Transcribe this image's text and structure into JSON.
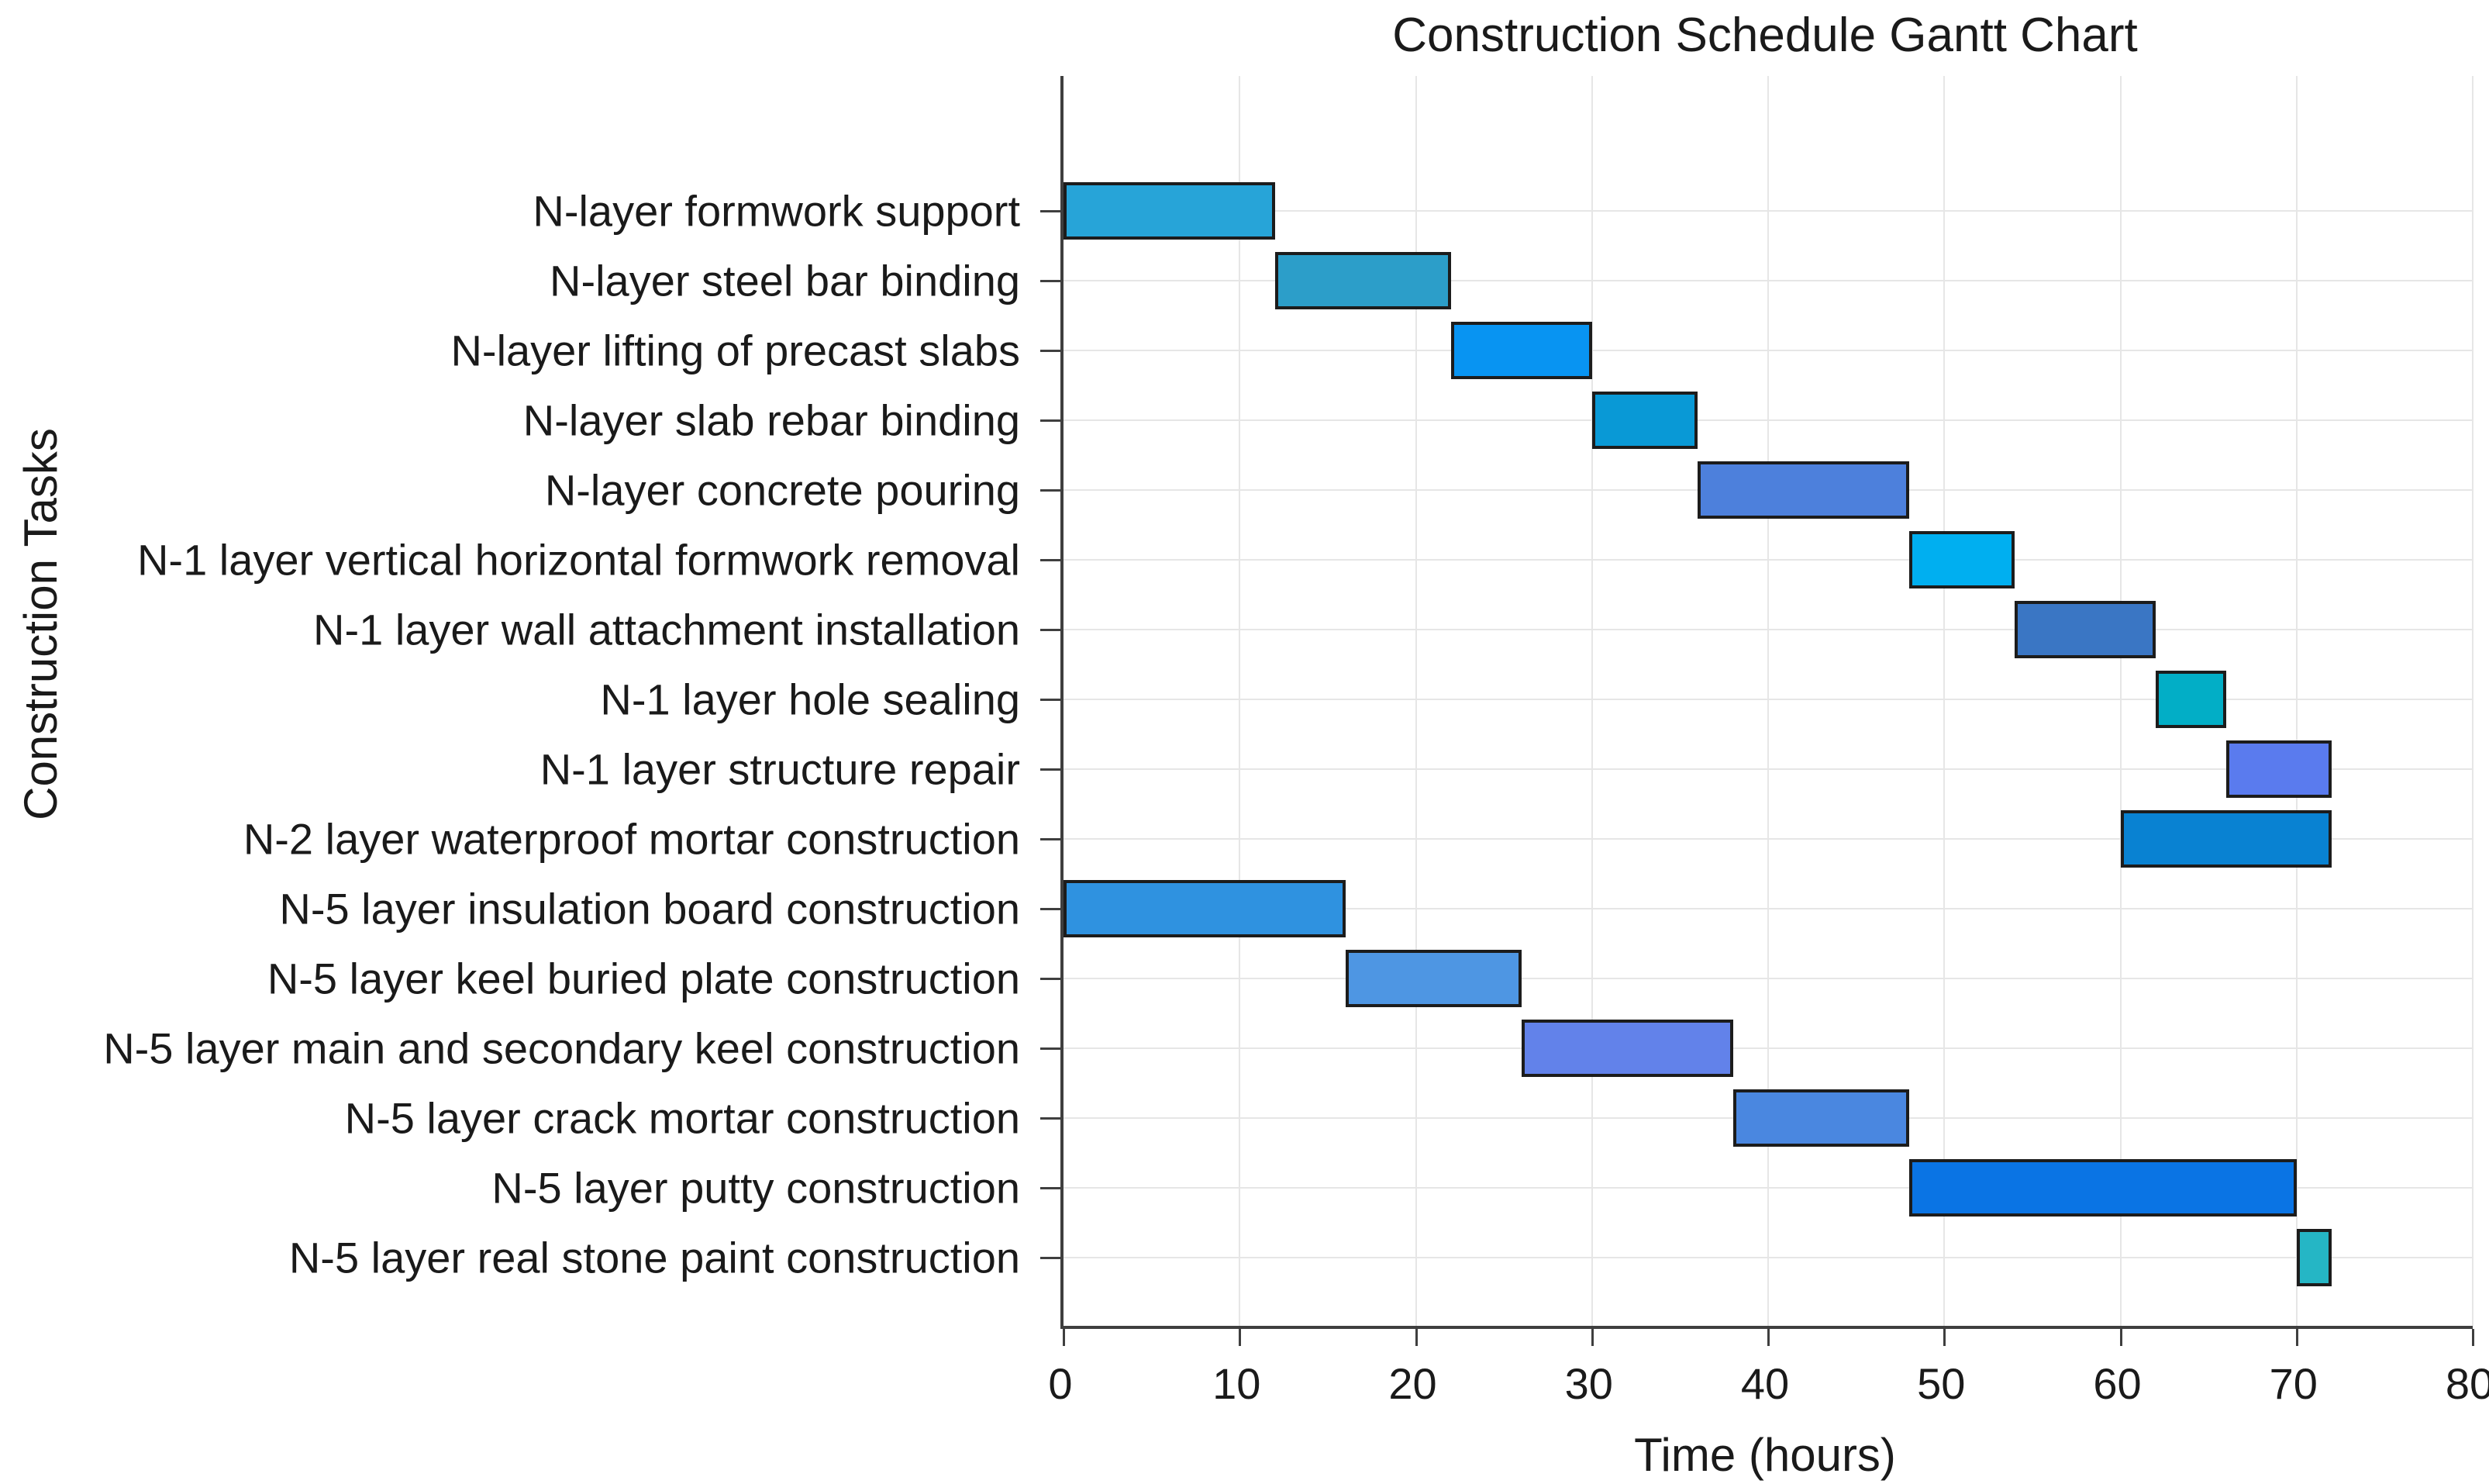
{
  "title": "Construction Schedule Gantt Chart",
  "x_axis_label": "Time (hours)",
  "y_axis_label": "Construction Tasks",
  "chart_data": {
    "type": "bar",
    "orientation": "horizontal-gantt",
    "title": "Construction Schedule Gantt Chart",
    "xlabel": "Time (hours)",
    "ylabel": "Construction Tasks",
    "xlim": [
      0,
      80
    ],
    "x_ticks": [
      0,
      10,
      20,
      30,
      40,
      50,
      60,
      70,
      80
    ],
    "grid": true,
    "legend": "none",
    "bar_border_color": "#1c1c1c",
    "tasks": [
      {
        "label": "N-layer formwork support",
        "start": 0,
        "end": 12,
        "color": "#27a4d8"
      },
      {
        "label": "N-layer steel bar binding",
        "start": 12,
        "end": 22,
        "color": "#2c9ec9"
      },
      {
        "label": "N-layer lifting of precast slabs",
        "start": 22,
        "end": 30,
        "color": "#0894f2"
      },
      {
        "label": "N-layer slab rebar binding",
        "start": 30,
        "end": 36,
        "color": "#0999d6"
      },
      {
        "label": "N-layer concrete pouring",
        "start": 36,
        "end": 48,
        "color": "#4d80dc"
      },
      {
        "label": "N-1 layer vertical horizontal formwork removal",
        "start": 48,
        "end": 54,
        "color": "#00aff0"
      },
      {
        "label": "N-1 layer wall attachment installation",
        "start": 54,
        "end": 62,
        "color": "#3a76c4"
      },
      {
        "label": "N-1 layer hole sealing",
        "start": 62,
        "end": 66,
        "color": "#02aec6"
      },
      {
        "label": "N-1 layer structure repair",
        "start": 66,
        "end": 72,
        "color": "#5a7bee"
      },
      {
        "label": "N-2 layer waterproof mortar construction",
        "start": 60,
        "end": 72,
        "color": "#0982d2"
      },
      {
        "label": "N-5 layer insulation board construction",
        "start": 0,
        "end": 16,
        "color": "#2f92e0"
      },
      {
        "label": "N-5 layer keel buried plate construction",
        "start": 16,
        "end": 26,
        "color": "#4e96e3"
      },
      {
        "label": "N-5 layer main and secondary keel construction",
        "start": 26,
        "end": 38,
        "color": "#6282ea"
      },
      {
        "label": "N-5 layer crack mortar construction",
        "start": 38,
        "end": 48,
        "color": "#4a87e0"
      },
      {
        "label": "N-5 layer putty construction",
        "start": 48,
        "end": 70,
        "color": "#0a74e4"
      },
      {
        "label": "N-5 layer real stone paint construction",
        "start": 70,
        "end": 72,
        "color": "#25b6c5"
      }
    ]
  }
}
